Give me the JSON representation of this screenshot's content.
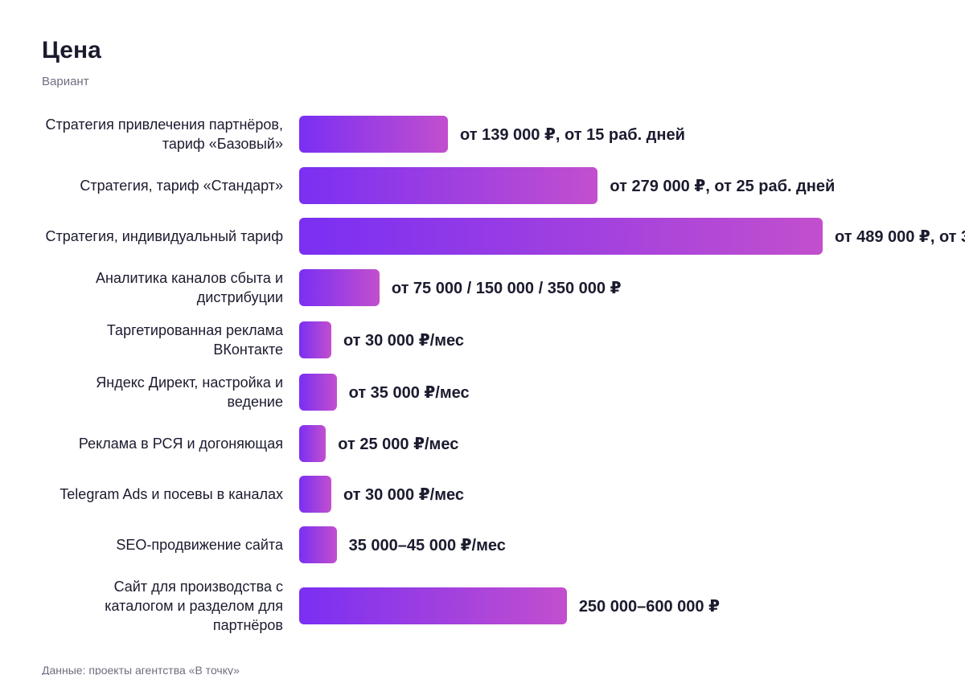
{
  "chart_data": {
    "type": "bar",
    "orientation": "horizontal",
    "title": "Цена",
    "subtitle": "Вариант",
    "categories": [
      "Стратегия привлечения партнёров, тариф «Базовый»",
      "Стратегия, тариф «Стандарт»",
      "Стратегия, индивидуальный тариф",
      "Аналитика каналов сбыта и дистрибуции",
      "Таргетированная реклама ВКонтакте",
      "Яндекс Директ, настройка и ведение",
      "Реклама в РСЯ и догоняющая",
      "Telegram Ads и посевы в каналах",
      "SEO-продвижение сайта",
      "Сайт для производства с каталогом и разделом для партнёров"
    ],
    "values": [
      139000,
      279000,
      489000,
      75000,
      30000,
      35000,
      25000,
      30000,
      35000,
      250000
    ],
    "value_labels": [
      "от 139 000 ₽, от 15 раб. дней",
      "от 279 000 ₽, от 25 раб. дней",
      "от 489 000 ₽, от 3",
      "от 75 000 / 150 000 / 350 000 ₽",
      "от 30 000 ₽/мес",
      "от 35 000 ₽/мес",
      "от 25 000 ₽/мес",
      "от 30 000 ₽/мес",
      "35 000–45 000 ₽/мес",
      "250 000–600 000 ₽"
    ],
    "colors": [
      "#7a2ff3",
      "#c24fce"
    ],
    "source": "Данные: проекты агентства «В точку»"
  }
}
